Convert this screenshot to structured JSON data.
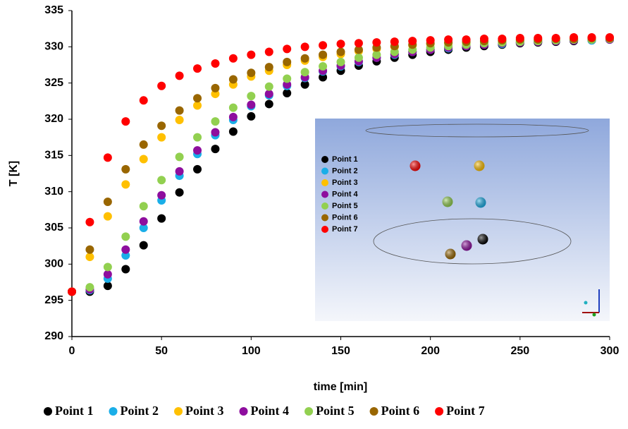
{
  "chart_data": {
    "type": "scatter",
    "xlabel": "time [min]",
    "ylabel": "T [K]",
    "xlim": [
      0,
      300
    ],
    "xticks": [
      0,
      50,
      100,
      150,
      200,
      250,
      300
    ],
    "ylim": [
      290,
      335
    ],
    "yticks": [
      290,
      295,
      300,
      305,
      310,
      315,
      320,
      325,
      330,
      335
    ],
    "grid": false,
    "legend": "bottom",
    "x": [
      0,
      10,
      20,
      30,
      40,
      50,
      60,
      70,
      80,
      90,
      100,
      110,
      120,
      130,
      140,
      150,
      160,
      170,
      180,
      190,
      200,
      210,
      220,
      230,
      240,
      250,
      260,
      270,
      280,
      290,
      300
    ],
    "series": [
      {
        "name": "Point 1",
        "color": "#000000",
        "values": [
          296.2,
          296.2,
          297,
          299.3,
          302.6,
          306.3,
          309.9,
          313.1,
          315.9,
          318.3,
          320.4,
          322.1,
          323.6,
          324.8,
          325.8,
          326.7,
          327.4,
          328,
          328.5,
          328.9,
          329.3,
          329.6,
          329.9,
          330.1,
          330.3,
          330.5,
          330.6,
          330.7,
          330.8,
          330.9,
          331
        ]
      },
      {
        "name": "Point 2",
        "color": "#1aaee8",
        "values": [
          296.2,
          296.4,
          298,
          301.2,
          305,
          308.8,
          312.2,
          315.2,
          317.8,
          319.9,
          321.8,
          323.3,
          324.6,
          325.7,
          326.6,
          327.3,
          327.9,
          328.5,
          328.9,
          329.3,
          329.6,
          329.8,
          330.1,
          330.3,
          330.4,
          330.6,
          330.7,
          330.8,
          330.9,
          330.9,
          331
        ]
      },
      {
        "name": "Point 3",
        "color": "#ffc000",
        "values": [
          296.2,
          301,
          306.6,
          311,
          314.5,
          317.5,
          319.9,
          321.9,
          323.5,
          324.8,
          325.9,
          326.7,
          327.5,
          328.1,
          328.6,
          329,
          329.4,
          329.7,
          330,
          330.2,
          330.4,
          330.5,
          330.6,
          330.7,
          330.8,
          330.9,
          331,
          331,
          331.1,
          331.1,
          331.2
        ]
      },
      {
        "name": "Point 4",
        "color": "#8e0e9e",
        "values": [
          296.2,
          296.5,
          298.6,
          302,
          305.9,
          309.5,
          312.8,
          315.7,
          318.2,
          320.3,
          322,
          323.5,
          324.8,
          325.8,
          326.7,
          327.4,
          328,
          328.5,
          329,
          329.3,
          329.6,
          329.9,
          330.1,
          330.3,
          330.5,
          330.6,
          330.7,
          330.8,
          330.9,
          331,
          331
        ]
      },
      {
        "name": "Point 5",
        "color": "#92d050",
        "values": [
          296.2,
          296.8,
          299.6,
          303.8,
          308,
          311.6,
          314.8,
          317.5,
          319.7,
          321.6,
          323.2,
          324.5,
          325.6,
          326.5,
          327.3,
          327.9,
          328.5,
          328.9,
          329.3,
          329.6,
          329.9,
          330.1,
          330.3,
          330.5,
          330.6,
          330.7,
          330.8,
          330.9,
          331,
          331,
          331.1
        ]
      },
      {
        "name": "Point 6",
        "color": "#996600",
        "values": [
          296.2,
          302,
          308.6,
          313.1,
          316.5,
          319.1,
          321.2,
          322.9,
          324.3,
          325.5,
          326.4,
          327.2,
          327.9,
          328.4,
          328.9,
          329.3,
          329.6,
          329.9,
          330.1,
          330.3,
          330.5,
          330.6,
          330.7,
          330.8,
          330.9,
          331,
          331,
          331.1,
          331.1,
          331.2,
          331.2
        ]
      },
      {
        "name": "Point 7",
        "color": "#ff0000",
        "values": [
          296.2,
          305.8,
          314.7,
          319.7,
          322.6,
          324.6,
          326,
          327,
          327.7,
          328.4,
          328.9,
          329.3,
          329.7,
          330,
          330.2,
          330.4,
          330.5,
          330.6,
          330.7,
          330.8,
          330.9,
          331,
          331,
          331.1,
          331.1,
          331.2,
          331.2,
          331.2,
          331.3,
          331.3,
          331.3
        ]
      }
    ]
  }
}
